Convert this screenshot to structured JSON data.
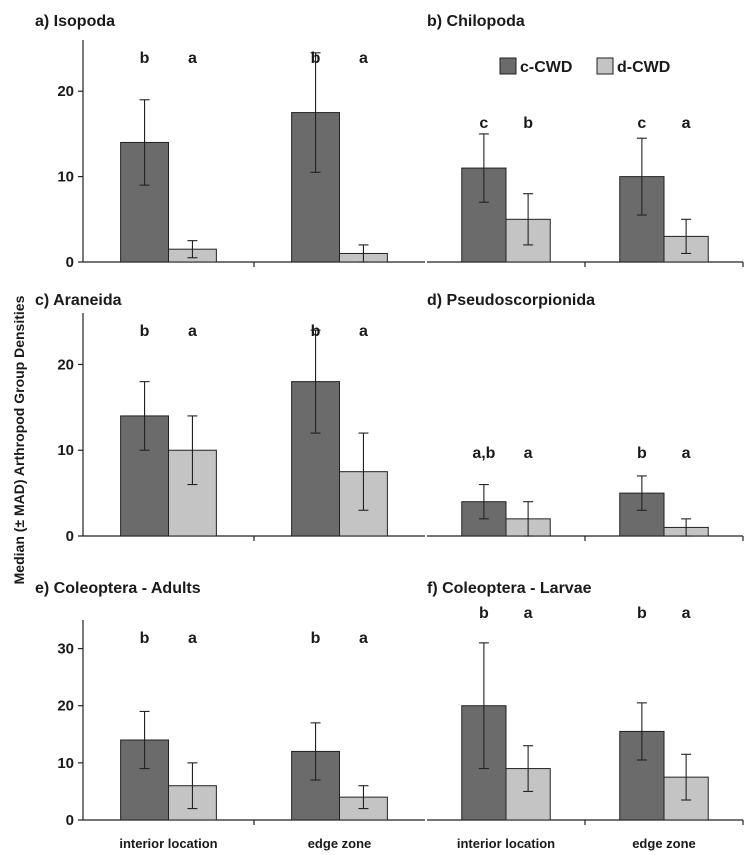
{
  "figure": {
    "ylabel": "Median (± MAD) Arthropod Group Densities",
    "legend": {
      "placement": "top-right of panel b",
      "entries": [
        {
          "label": "c-CWD",
          "color": "#6b6b6b"
        },
        {
          "label": "d-CWD",
          "color": "#c4c4c4"
        }
      ]
    }
  },
  "chart_data": [
    {
      "type": "bar",
      "title": "a)  Isopoda",
      "categories": [
        "interior location",
        "edge zone"
      ],
      "show_xticklabels": false,
      "ylim": [
        0,
        26
      ],
      "yticks": [
        0,
        10,
        20
      ],
      "series": [
        {
          "name": "c-CWD",
          "values": [
            14,
            17.5
          ],
          "err": [
            5,
            7
          ],
          "letters": [
            "b",
            "b"
          ]
        },
        {
          "name": "d-CWD",
          "values": [
            1.5,
            1
          ],
          "err": [
            1,
            1
          ],
          "letters": [
            "a",
            "a"
          ]
        }
      ]
    },
    {
      "type": "bar",
      "title": "b)  Chilopoda",
      "categories": [
        "interior location",
        "edge zone"
      ],
      "show_xticklabels": false,
      "ylim": [
        0,
        26
      ],
      "yticks": [],
      "series": [
        {
          "name": "c-CWD",
          "values": [
            11,
            10
          ],
          "err": [
            4,
            4.5
          ],
          "letters": [
            "c",
            "c"
          ]
        },
        {
          "name": "d-CWD",
          "values": [
            5,
            3
          ],
          "err": [
            3,
            2
          ],
          "letters": [
            "b",
            "a"
          ]
        }
      ]
    },
    {
      "type": "bar",
      "title": "c)  Araneida",
      "categories": [
        "interior location",
        "edge zone"
      ],
      "show_xticklabels": false,
      "ylim": [
        0,
        26
      ],
      "yticks": [
        0,
        10,
        20
      ],
      "series": [
        {
          "name": "c-CWD",
          "values": [
            14,
            18
          ],
          "err": [
            4,
            6
          ],
          "letters": [
            "b",
            "b"
          ]
        },
        {
          "name": "d-CWD",
          "values": [
            10,
            7.5
          ],
          "err": [
            4,
            4.5
          ],
          "letters": [
            "a",
            "a"
          ]
        }
      ]
    },
    {
      "type": "bar",
      "title": "d)  Pseudoscorpionida",
      "categories": [
        "interior location",
        "edge zone"
      ],
      "show_xticklabels": false,
      "ylim": [
        0,
        26
      ],
      "yticks": [],
      "series": [
        {
          "name": "c-CWD",
          "values": [
            4,
            5
          ],
          "err": [
            2,
            2
          ],
          "letters": [
            "a,b",
            "b"
          ]
        },
        {
          "name": "d-CWD",
          "values": [
            2,
            1
          ],
          "err": [
            2,
            1
          ],
          "letters": [
            "a",
            "a"
          ]
        }
      ]
    },
    {
      "type": "bar",
      "title": "e)  Coleoptera - Adults",
      "categories": [
        "interior location",
        "edge zone"
      ],
      "show_xticklabels": true,
      "ylim": [
        0,
        35
      ],
      "yticks": [
        0,
        10,
        20,
        30
      ],
      "series": [
        {
          "name": "c-CWD",
          "values": [
            14,
            12
          ],
          "err": [
            5,
            5
          ],
          "letters": [
            "b",
            "b"
          ]
        },
        {
          "name": "d-CWD",
          "values": [
            6,
            4
          ],
          "err": [
            4,
            2
          ],
          "letters": [
            "a",
            "a"
          ]
        }
      ]
    },
    {
      "type": "bar",
      "title": "f)  Coleoptera - Larvae",
      "categories": [
        "interior location",
        "edge zone"
      ],
      "show_xticklabels": true,
      "ylim": [
        0,
        35
      ],
      "yticks": [],
      "series": [
        {
          "name": "c-CWD",
          "values": [
            20,
            15.5
          ],
          "err": [
            11,
            5
          ],
          "letters": [
            "b",
            "b"
          ]
        },
        {
          "name": "d-CWD",
          "values": [
            9,
            7.5
          ],
          "err": [
            4,
            4
          ],
          "letters": [
            "a",
            "a"
          ]
        }
      ]
    }
  ]
}
